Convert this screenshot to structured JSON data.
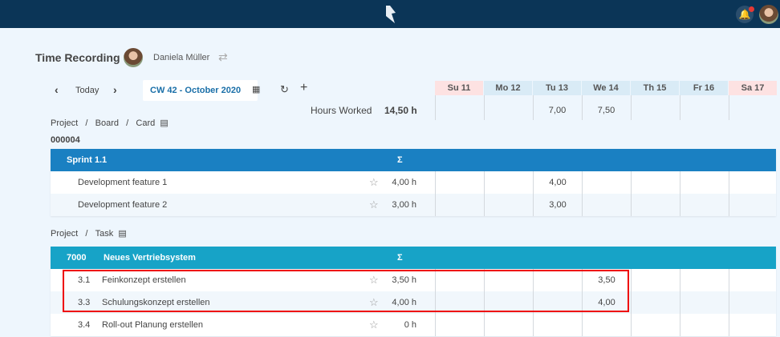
{
  "header": {
    "notification_badge": true
  },
  "page": {
    "title": "Time Recording",
    "user": "Daniela Müller"
  },
  "nav": {
    "today": "Today",
    "week": "CW 42 - October 2020"
  },
  "hours": {
    "label": "Hours Worked",
    "total": "14,50 h"
  },
  "days": [
    {
      "label": "Su 11",
      "weekend": true,
      "worked": ""
    },
    {
      "label": "Mo 12",
      "weekend": false,
      "worked": ""
    },
    {
      "label": "Tu 13",
      "weekend": false,
      "worked": "7,00"
    },
    {
      "label": "We 14",
      "weekend": false,
      "worked": "7,50"
    },
    {
      "label": "Th 15",
      "weekend": false,
      "worked": ""
    },
    {
      "label": "Fr 16",
      "weekend": false,
      "worked": ""
    },
    {
      "label": "Sa 17",
      "weekend": true,
      "worked": ""
    }
  ],
  "section1": {
    "breadcrumb": [
      "Project",
      "Board",
      "Card"
    ],
    "id": "000004",
    "group": {
      "name": "Sprint 1.1",
      "sigma": "Σ",
      "color": "#1a80c2"
    },
    "rows": [
      {
        "no": "",
        "name": "Development feature 1",
        "total": "4,00 h",
        "days": [
          "",
          "",
          "4,00",
          "",
          "",
          "",
          ""
        ]
      },
      {
        "no": "",
        "name": "Development feature 2",
        "total": "3,00 h",
        "days": [
          "",
          "",
          "3,00",
          "",
          "",
          "",
          ""
        ]
      }
    ]
  },
  "section2": {
    "breadcrumb": [
      "Project",
      "Task"
    ],
    "group": {
      "id": "7000",
      "name": "Neues Vertriebsystem",
      "sigma": "Σ",
      "color": "#17a3c7"
    },
    "rows": [
      {
        "no": "3.1",
        "name": "Feinkonzept erstellen",
        "total": "3,50 h",
        "days": [
          "",
          "",
          "",
          "3,50",
          "",
          "",
          ""
        ]
      },
      {
        "no": "3.3",
        "name": "Schulungskonzept erstellen",
        "total": "4,00 h",
        "days": [
          "",
          "",
          "",
          "4,00",
          "",
          "",
          ""
        ]
      },
      {
        "no": "3.4",
        "name": "Roll-out Planung erstellen",
        "total": "0 h",
        "days": [
          "",
          "",
          "",
          "",
          "",
          "",
          ""
        ]
      }
    ]
  },
  "highlight": {
    "color": "#e00000"
  }
}
